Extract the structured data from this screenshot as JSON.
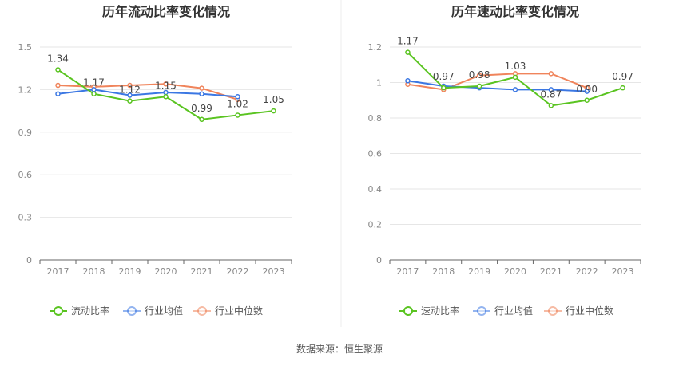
{
  "source_text": "数据来源：恒生聚源",
  "chart_data": [
    {
      "type": "line",
      "title": "历年流动比率变化情况",
      "categories": [
        "2017",
        "2018",
        "2019",
        "2020",
        "2021",
        "2022",
        "2023"
      ],
      "ylim": [
        0,
        1.5
      ],
      "yticks": [
        "0",
        "0.3",
        "0.6",
        "0.9",
        "1.2",
        "1.5"
      ],
      "grid": true,
      "legend_position": "bottom",
      "series": [
        {
          "name": "流动比率",
          "color": "#5ac421",
          "values": [
            1.34,
            1.17,
            1.12,
            1.15,
            0.99,
            1.02,
            1.05
          ],
          "labels": [
            "1.34",
            "1.17",
            "1.12",
            "1.15",
            "0.99",
            "1.02",
            "1.05"
          ]
        },
        {
          "name": "行业均值",
          "color": "#3b77e3",
          "values": [
            1.17,
            1.2,
            1.16,
            1.18,
            1.17,
            1.15,
            null
          ]
        },
        {
          "name": "行业中位数",
          "color": "#f0845b",
          "values": [
            1.23,
            1.22,
            1.23,
            1.24,
            1.21,
            1.13,
            null
          ]
        }
      ]
    },
    {
      "type": "line",
      "title": "历年速动比率变化情况",
      "categories": [
        "2017",
        "2018",
        "2019",
        "2020",
        "2021",
        "2022",
        "2023"
      ],
      "ylim": [
        0,
        1.2
      ],
      "yticks": [
        "0",
        "0.2",
        "0.4",
        "0.6",
        "0.8",
        "1",
        "1.2"
      ],
      "grid": true,
      "legend_position": "bottom",
      "series": [
        {
          "name": "速动比率",
          "color": "#5ac421",
          "values": [
            1.17,
            0.97,
            0.98,
            1.03,
            0.87,
            0.9,
            0.97
          ],
          "labels": [
            "1.17",
            "0.97",
            "0.98",
            "1.03",
            "0.87",
            "0.90",
            "0.97"
          ]
        },
        {
          "name": "行业均值",
          "color": "#3b77e3",
          "values": [
            1.01,
            0.98,
            0.97,
            0.96,
            0.96,
            0.95,
            null
          ]
        },
        {
          "name": "行业中位数",
          "color": "#f0845b",
          "values": [
            0.99,
            0.96,
            1.04,
            1.05,
            1.05,
            0.97,
            null
          ]
        }
      ]
    }
  ]
}
